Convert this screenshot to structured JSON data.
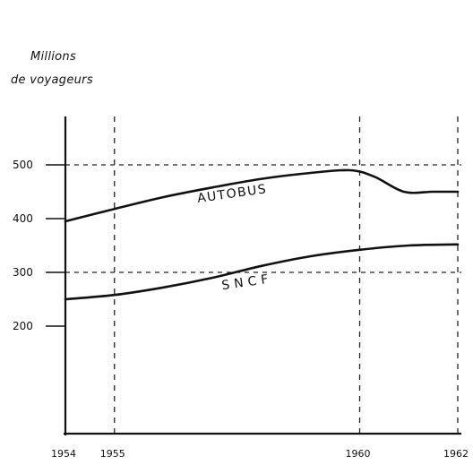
{
  "chart_data": {
    "type": "line",
    "ylabel_line1": "Millions",
    "ylabel_line2": "de voyageurs",
    "xlim": [
      1954,
      1962
    ],
    "ylim": [
      0,
      600
    ],
    "x_ticks": [
      {
        "value": 1954,
        "label": "1954",
        "gridline": false
      },
      {
        "value": 1955,
        "label": "1955",
        "gridline": true
      },
      {
        "value": 1960,
        "label": "1960",
        "gridline": true
      },
      {
        "value": 1962,
        "label": "1962",
        "gridline": true
      }
    ],
    "y_ticks": [
      {
        "value": 500,
        "label": "500",
        "gridline": true
      },
      {
        "value": 400,
        "label": "400",
        "gridline": false
      },
      {
        "value": 300,
        "label": "300",
        "gridline": true
      },
      {
        "value": 200,
        "label": "200",
        "gridline": false
      }
    ],
    "series": [
      {
        "name": "AUTOBUS",
        "x": [
          1954,
          1955,
          1956,
          1957,
          1958,
          1959,
          1959.8,
          1960.3,
          1960.9,
          1961.5,
          1962
        ],
        "values": [
          395,
          418,
          440,
          458,
          474,
          485,
          490,
          478,
          450,
          450,
          450
        ]
      },
      {
        "name": "SNCF",
        "x": [
          1954,
          1955,
          1956,
          1957,
          1958,
          1959,
          1960,
          1961,
          1962
        ],
        "values": [
          250,
          258,
          272,
          290,
          312,
          330,
          342,
          350,
          352
        ]
      }
    ]
  }
}
